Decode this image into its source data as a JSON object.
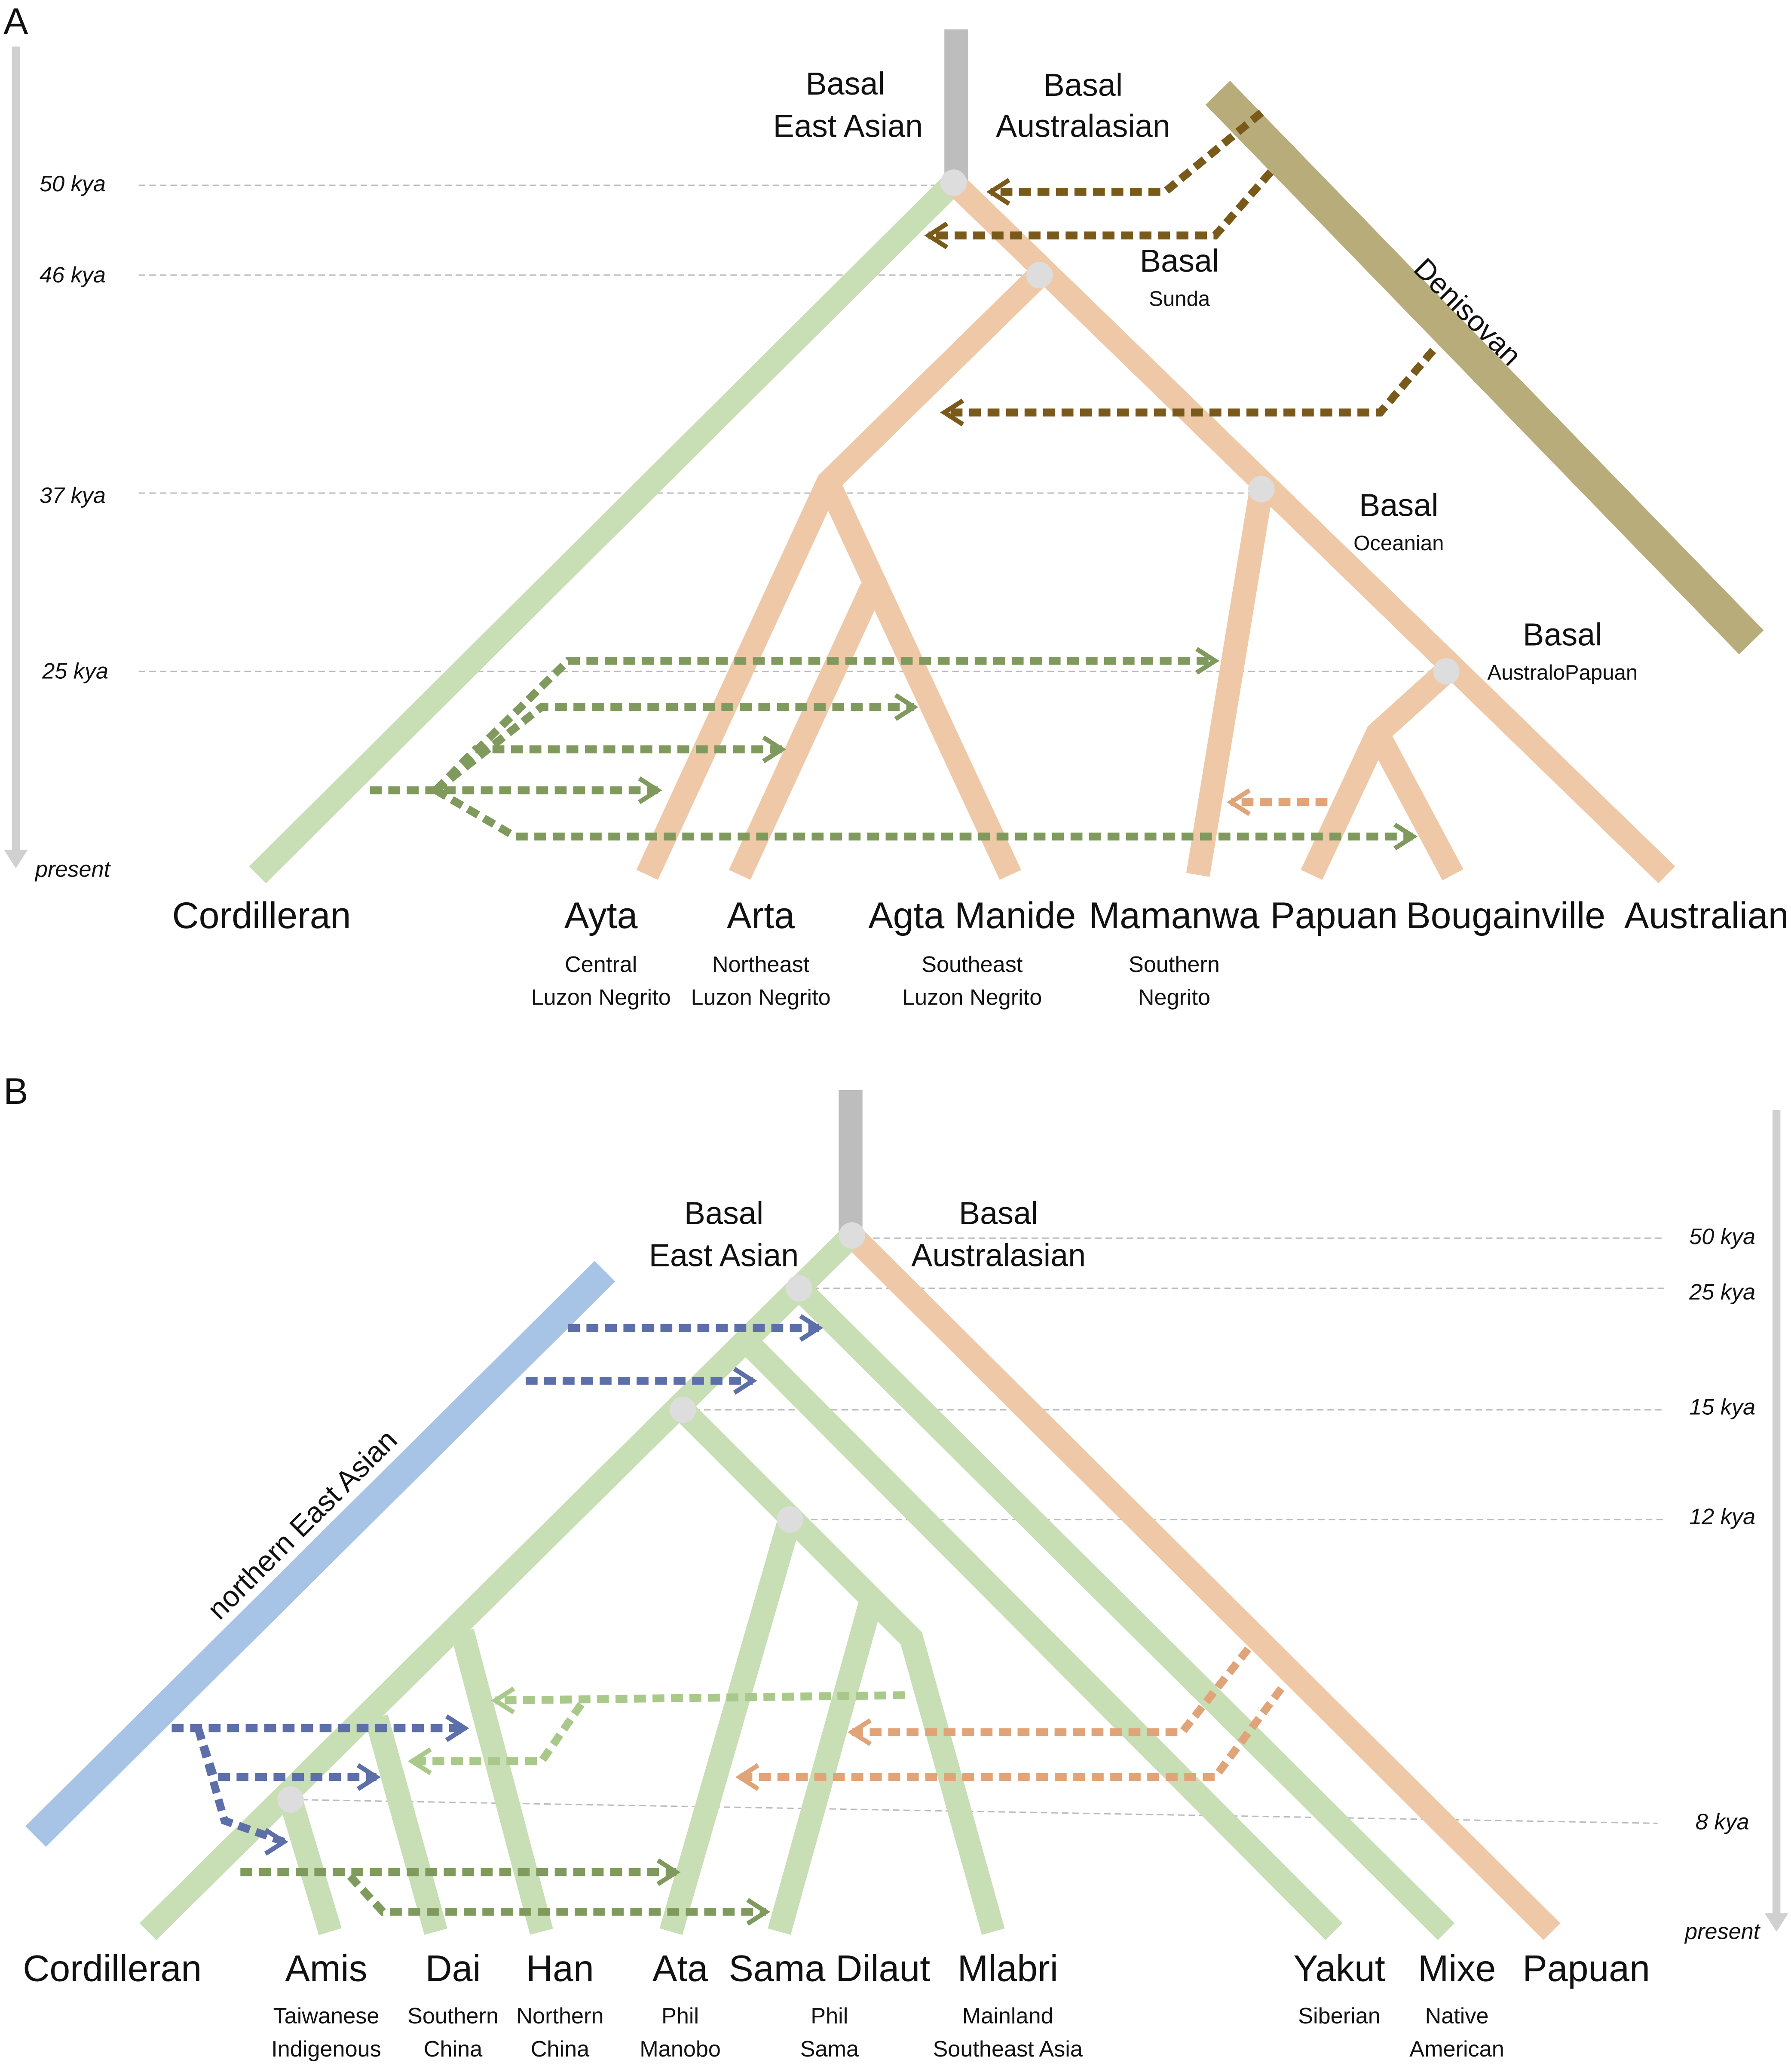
{
  "panels": [
    {
      "label": "A",
      "time_axis": [
        "50 kya",
        "46 kya",
        "37 kya",
        "25 kya",
        "present"
      ],
      "clades": [
        [
          "Basal",
          "East Asian"
        ],
        [
          "Basal",
          "Australasian"
        ],
        [
          "Basal",
          "Sunda"
        ],
        [
          "Basal",
          "Oceanian"
        ],
        [
          "Basal",
          "AustraloPapuan"
        ]
      ],
      "archaic": "Denisovan",
      "populations": [
        {
          "name": "Cordilleran"
        },
        {
          "name": "Ayta",
          "description": [
            "Central",
            "Luzon Negrito"
          ]
        },
        {
          "name": "Arta",
          "description": [
            "Northeast",
            "Luzon Negrito"
          ]
        },
        {
          "name": "Agta Manide",
          "description": [
            "Southeast",
            "Luzon Negrito"
          ]
        },
        {
          "name": "Mamanwa",
          "description": [
            "Southern",
            "Negrito"
          ]
        },
        {
          "name": "Papuan"
        },
        {
          "name": "Bougainville"
        },
        {
          "name": "Australian"
        }
      ]
    },
    {
      "label": "B",
      "time_axis": [
        "50 kya",
        "25 kya",
        "15 kya",
        "12 kya",
        "8 kya",
        "present"
      ],
      "clades": [
        [
          "Basal",
          "East Asian"
        ],
        [
          "Basal",
          "Australasian"
        ]
      ],
      "archaic": "northern East Asian",
      "populations": [
        {
          "name": "Cordilleran"
        },
        {
          "name": "Amis",
          "description": [
            "Taiwanese",
            "Indigenous"
          ]
        },
        {
          "name": "Dai",
          "description": [
            "Southern",
            "China"
          ]
        },
        {
          "name": "Han",
          "description": [
            "Northern",
            "China"
          ]
        },
        {
          "name": "Ata",
          "description": [
            "Phil",
            "Manobo"
          ]
        },
        {
          "name": "Sama Dilaut",
          "description": [
            "Phil",
            "Sama"
          ]
        },
        {
          "name": "Mlabri",
          "description": [
            "Mainland",
            "Southeast Asia"
          ]
        },
        {
          "name": "Yakut",
          "description": [
            "Siberian"
          ]
        },
        {
          "name": "Mixe",
          "description": [
            "Native",
            "American"
          ]
        },
        {
          "name": "Papuan"
        }
      ]
    }
  ]
}
